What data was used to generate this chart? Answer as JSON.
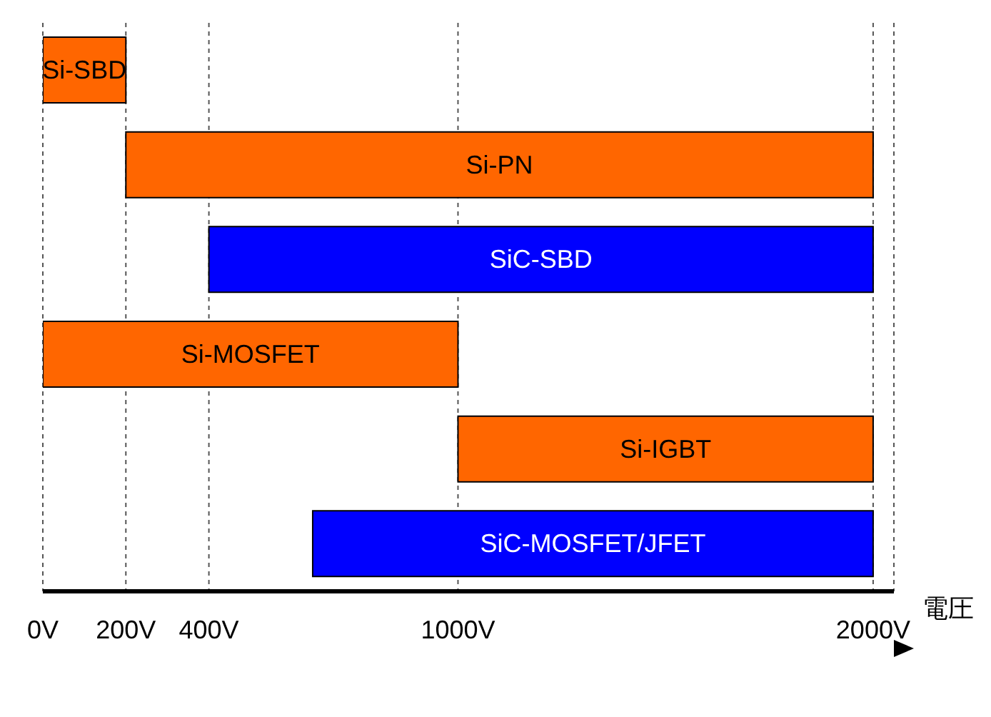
{
  "chart_data": {
    "type": "bar",
    "orientation": "horizontal",
    "categories": [
      "Si-SBD",
      "Si-PN",
      "SiC-SBD",
      "Si-MOSFET",
      "Si-IGBT",
      "SiC-MOSFET/JFET"
    ],
    "base": [
      0,
      200,
      400,
      0,
      1000,
      650
    ],
    "values": [
      200,
      1800,
      1600,
      1000,
      1000,
      1350
    ],
    "colors": [
      "#ff6600",
      "#ff6600",
      "#0000ff",
      "#ff6600",
      "#ff6600",
      "#0000ff"
    ],
    "xlabel": "電圧",
    "xlim": [
      0,
      2050
    ],
    "xticks": [
      {
        "value": 0,
        "label": "0V"
      },
      {
        "value": 200,
        "label": "200V"
      },
      {
        "value": 400,
        "label": "400V"
      },
      {
        "value": 1000,
        "label": "1000V"
      },
      {
        "value": 2000,
        "label": "2000V"
      }
    ],
    "grid": "x"
  }
}
